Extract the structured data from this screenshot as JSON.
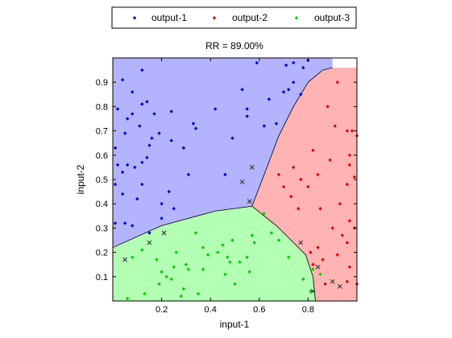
{
  "chart_data": {
    "type": "scatter",
    "title": "RR = 89.00%",
    "xlabel": "input-1",
    "ylabel": "input-2",
    "xlim": [
      0,
      1
    ],
    "ylim": [
      0,
      1
    ],
    "xticks": [
      0.2,
      0.4,
      0.6,
      0.8
    ],
    "xtick_labels": [
      "0.2",
      "0.4",
      "0.6",
      "0.8"
    ],
    "yticks": [
      0.1,
      0.2,
      0.3,
      0.4,
      0.5,
      0.6,
      0.7,
      0.8,
      0.9
    ],
    "ytick_labels": [
      "0.1",
      "0.2",
      "0.3",
      "0.4",
      "0.5",
      "0.6",
      "0.7",
      "0.8",
      "0.9"
    ],
    "grid": false,
    "legend_position": "top",
    "legend": [
      {
        "label": "output-1",
        "color": "#0000cc"
      },
      {
        "label": "output-2",
        "color": "#dd0000"
      },
      {
        "label": "output-3",
        "color": "#00cc00"
      }
    ],
    "regions": [
      {
        "name": "output-1",
        "color": "#b3b3ff",
        "boundary": [
          [
            0,
            1
          ],
          [
            0,
            0.22
          ],
          [
            0.2,
            0.31
          ],
          [
            0.42,
            0.37
          ],
          [
            0.57,
            0.39
          ],
          [
            0.62,
            0.52
          ],
          [
            0.68,
            0.68
          ],
          [
            0.74,
            0.8
          ],
          [
            0.8,
            0.9
          ],
          [
            0.86,
            0.95
          ],
          [
            0.9,
            0.96
          ],
          [
            0.9,
            1
          ]
        ]
      },
      {
        "name": "output-2",
        "color": "#ffb3b3",
        "boundary": [
          [
            0.57,
            0.39
          ],
          [
            0.62,
            0.52
          ],
          [
            0.68,
            0.68
          ],
          [
            0.74,
            0.8
          ],
          [
            0.8,
            0.9
          ],
          [
            0.86,
            0.95
          ],
          [
            0.9,
            0.96
          ],
          [
            1,
            0.96
          ],
          [
            1,
            0
          ],
          [
            0.83,
            0
          ],
          [
            0.82,
            0.1
          ],
          [
            0.79,
            0.19
          ],
          [
            0.74,
            0.24
          ],
          [
            0.67,
            0.31
          ]
        ]
      },
      {
        "name": "output-3",
        "color": "#b3ffb3",
        "boundary": [
          [
            0,
            0
          ],
          [
            0,
            0.22
          ],
          [
            0.2,
            0.31
          ],
          [
            0.42,
            0.37
          ],
          [
            0.57,
            0.39
          ],
          [
            0.67,
            0.31
          ],
          [
            0.74,
            0.24
          ],
          [
            0.79,
            0.19
          ],
          [
            0.82,
            0.1
          ],
          [
            0.83,
            0
          ]
        ]
      }
    ],
    "series": [
      {
        "name": "output-1",
        "color": "#0000cc",
        "points": [
          [
            0.04,
            0.91
          ],
          [
            0.08,
            0.86
          ],
          [
            0.12,
            0.95
          ],
          [
            0.14,
            0.82
          ],
          [
            0.12,
            0.81
          ],
          [
            0.02,
            0.79
          ],
          [
            0.06,
            0.75
          ],
          [
            0.08,
            0.77
          ],
          [
            0.11,
            0.72
          ],
          [
            0.17,
            0.77
          ],
          [
            0.19,
            0.69
          ],
          [
            0.24,
            0.66
          ],
          [
            0.05,
            0.69
          ],
          [
            0.15,
            0.64
          ],
          [
            0.16,
            0.67
          ],
          [
            0.14,
            0.59
          ],
          [
            0.01,
            0.63
          ],
          [
            0.02,
            0.56
          ],
          [
            0.04,
            0.53
          ],
          [
            0.06,
            0.56
          ],
          [
            0.09,
            0.55
          ],
          [
            0.12,
            0.57
          ],
          [
            0.12,
            0.48
          ],
          [
            0.04,
            0.44
          ],
          [
            0.01,
            0.48
          ],
          [
            0.1,
            0.42
          ],
          [
            0.01,
            0.32
          ],
          [
            0.05,
            0.32
          ],
          [
            0.08,
            0.31
          ],
          [
            0.23,
            0.45
          ],
          [
            0.2,
            0.4
          ],
          [
            0.25,
            0.38
          ],
          [
            0.29,
            0.63
          ],
          [
            0.31,
            0.52
          ],
          [
            0.33,
            0.73
          ],
          [
            0.34,
            0.71
          ],
          [
            0.24,
            0.78
          ],
          [
            0.42,
            0.79
          ],
          [
            0.46,
            0.52
          ],
          [
            0.49,
            0.67
          ],
          [
            0.55,
            0.76
          ],
          [
            0.59,
            0.98
          ],
          [
            0.62,
            0.72
          ],
          [
            0.64,
            0.83
          ],
          [
            0.67,
            0.73
          ],
          [
            0.7,
            0.86
          ],
          [
            0.72,
            0.87
          ],
          [
            0.74,
            0.9
          ],
          [
            0.71,
            0.97
          ],
          [
            0.74,
            0.98
          ],
          [
            0.77,
            0.85
          ],
          [
            0.78,
            0.96
          ],
          [
            0.8,
            0.99
          ],
          [
            0.55,
            0.79
          ],
          [
            0.53,
            0.87
          ],
          [
            0.15,
            0.28
          ],
          [
            0.2,
            0.34
          ]
        ]
      },
      {
        "name": "output-2",
        "color": "#dd0000",
        "points": [
          [
            0.68,
            0.52
          ],
          [
            0.7,
            0.47
          ],
          [
            0.73,
            0.43
          ],
          [
            0.74,
            0.55
          ],
          [
            0.77,
            0.5
          ],
          [
            0.8,
            0.47
          ],
          [
            0.76,
            0.38
          ],
          [
            0.82,
            0.62
          ],
          [
            0.84,
            0.52
          ],
          [
            0.85,
            0.38
          ],
          [
            0.89,
            0.58
          ],
          [
            0.88,
            0.8
          ],
          [
            0.91,
            0.72
          ],
          [
            0.92,
            0.9
          ],
          [
            0.96,
            0.7
          ],
          [
            0.97,
            0.6
          ],
          [
            0.98,
            0.7
          ],
          [
            0.97,
            0.56
          ],
          [
            0.96,
            0.48
          ],
          [
            0.97,
            0.33
          ],
          [
            0.93,
            0.4
          ],
          [
            0.9,
            0.3
          ],
          [
            0.92,
            0.19
          ],
          [
            0.94,
            0.27
          ],
          [
            0.96,
            0.24
          ],
          [
            0.99,
            0.3
          ],
          [
            0.86,
            0.17
          ],
          [
            0.81,
            0.2
          ],
          [
            0.82,
            0.15
          ],
          [
            0.87,
            0.07
          ],
          [
            0.97,
            0.14
          ],
          [
            1,
            0.07
          ],
          [
            0.96,
            0.08
          ],
          [
            1,
            0.68
          ],
          [
            0.99,
            0.51
          ],
          [
            0.84,
            0.22
          ]
        ]
      },
      {
        "name": "output-3",
        "color": "#00cc00",
        "points": [
          [
            0.06,
            0.01
          ],
          [
            0.08,
            0.18
          ],
          [
            0.12,
            0.21
          ],
          [
            0.18,
            0.17
          ],
          [
            0.2,
            0.12
          ],
          [
            0.19,
            0.07
          ],
          [
            0.22,
            0.1
          ],
          [
            0.25,
            0.14
          ],
          [
            0.24,
            0.09
          ],
          [
            0.26,
            0.2
          ],
          [
            0.28,
            0.02
          ],
          [
            0.29,
            0.05
          ],
          [
            0.3,
            0.15
          ],
          [
            0.31,
            0.13
          ],
          [
            0.34,
            0.28
          ],
          [
            0.37,
            0.13
          ],
          [
            0.37,
            0.22
          ],
          [
            0.39,
            0.19
          ],
          [
            0.43,
            0.2
          ],
          [
            0.45,
            0.23
          ],
          [
            0.46,
            0.11
          ],
          [
            0.47,
            0.18
          ],
          [
            0.48,
            0.16
          ],
          [
            0.49,
            0.25
          ],
          [
            0.52,
            0.16
          ],
          [
            0.55,
            0.18
          ],
          [
            0.56,
            0.12
          ],
          [
            0.57,
            0.27
          ],
          [
            0.62,
            0.36
          ],
          [
            0.65,
            0.28
          ],
          [
            0.68,
            0.25
          ],
          [
            0.72,
            0.18
          ],
          [
            0.78,
            0.09
          ],
          [
            0.81,
            0.04
          ],
          [
            0.82,
            0.13
          ],
          [
            0.85,
            0.11
          ],
          [
            0.13,
            0.03
          ],
          [
            0.58,
            0.24
          ],
          [
            0.5,
            0.07
          ],
          [
            0.35,
            0.03
          ]
        ]
      }
    ],
    "misclassified": [
      {
        "x": 0.53,
        "y": 0.49,
        "true_class": "output-2"
      },
      {
        "x": 0.57,
        "y": 0.55,
        "true_class": "output-2"
      },
      {
        "x": 0.56,
        "y": 0.41,
        "true_class": "output-3"
      },
      {
        "x": 0.15,
        "y": 0.24,
        "true_class": "output-1"
      },
      {
        "x": 0.21,
        "y": 0.28,
        "true_class": "output-1"
      },
      {
        "x": 0.05,
        "y": 0.17,
        "true_class": "output-1"
      },
      {
        "x": 0.77,
        "y": 0.24,
        "true_class": "output-3"
      },
      {
        "x": 0.84,
        "y": 0.14,
        "true_class": "output-3"
      },
      {
        "x": 0.82,
        "y": 0.04,
        "true_class": "output-3"
      },
      {
        "x": 0.9,
        "y": 0.08,
        "true_class": "output-3"
      },
      {
        "x": 0.93,
        "y": 0.06,
        "true_class": "output-3"
      }
    ]
  }
}
